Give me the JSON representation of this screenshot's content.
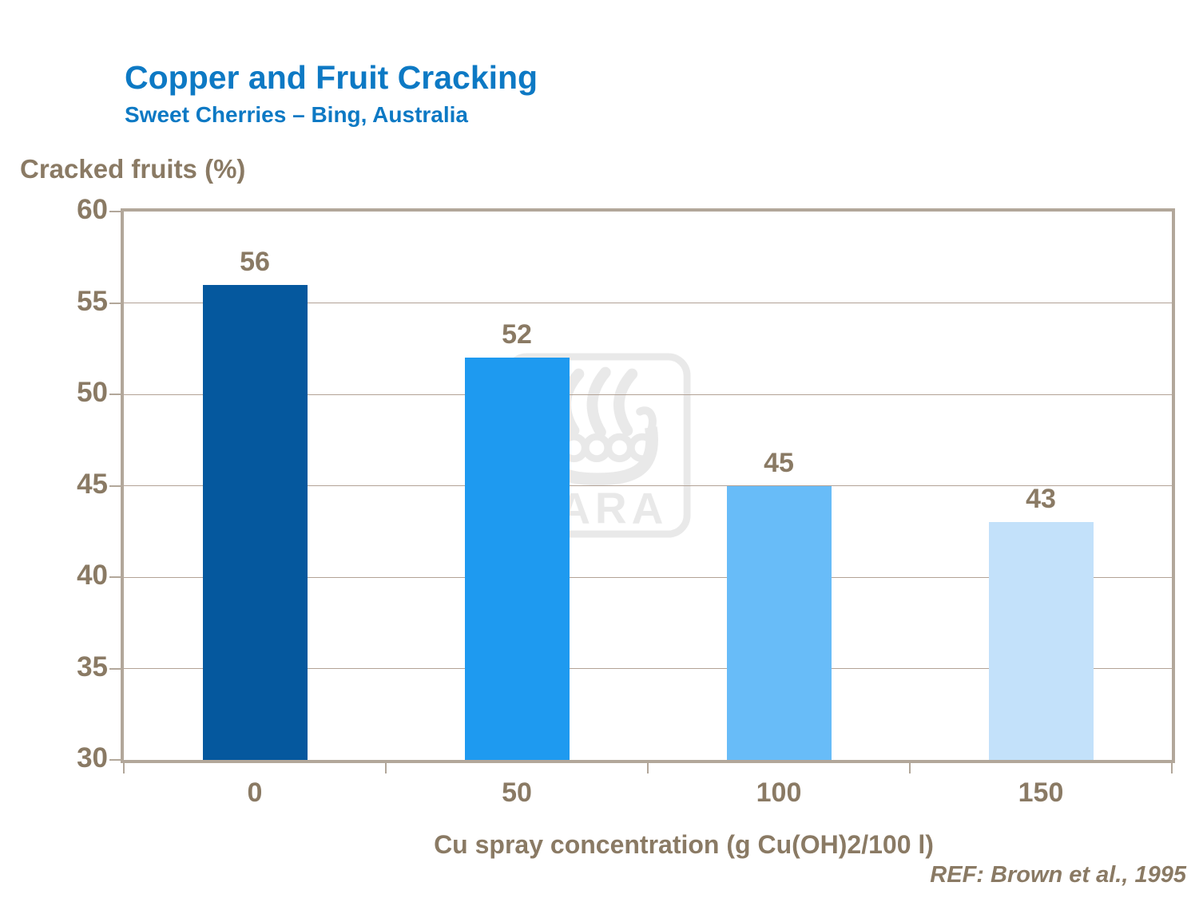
{
  "header": {
    "title": "Copper and Fruit Cracking",
    "subtitle": "Sweet Cherries – Bing, Australia"
  },
  "chart_data": {
    "type": "bar",
    "title": "Copper and Fruit Cracking",
    "subtitle": "Sweet Cherries – Bing, Australia",
    "categories": [
      "0",
      "50",
      "100",
      "150"
    ],
    "values": [
      56,
      52,
      45,
      43
    ],
    "value_labels": [
      "56",
      "52",
      "45",
      "43"
    ],
    "xlabel": "Cu spray concentration (g Cu(OH)2/100 l)",
    "ylabel": "Cracked fruits (%)",
    "ylim": [
      30,
      60
    ],
    "ytick_step": 5,
    "yticks": [
      60,
      55,
      50,
      45,
      40,
      35,
      30
    ],
    "grid": "horizontal",
    "legend_position": "none",
    "bar_colors": [
      "#05589e",
      "#1e9af0",
      "#68bcf8",
      "#c3e1fa"
    ]
  },
  "footer": {
    "reference": "REF: Brown et al., 1995"
  },
  "watermark": {
    "name": "yara-logo",
    "text": "YARA"
  },
  "colors": {
    "title_blue": "#0d79c4",
    "axis_text_brown": "#8a7a64",
    "frame_tan": "#b2a79a",
    "gridline_tan": "#b2a296",
    "watermark_gray": "#e9e9e9",
    "background": "#ffffff"
  }
}
